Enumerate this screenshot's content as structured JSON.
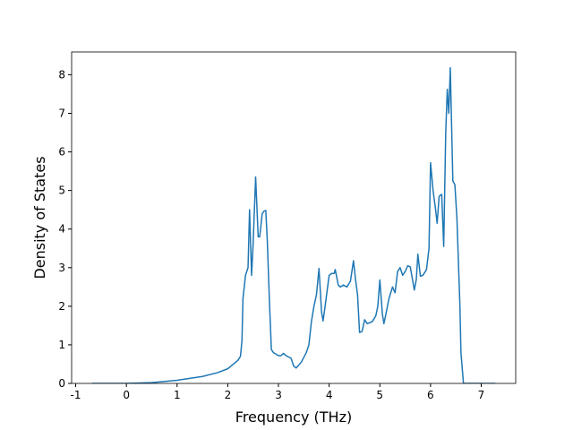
{
  "chart_data": {
    "type": "line",
    "x_label": "Frequency (THz)",
    "y_label": "Density of States",
    "series": [
      {
        "color": "#1f77b4",
        "x": [
          -0.68,
          0,
          0.5,
          1.0,
          1.5,
          1.8,
          2.0,
          2.2,
          2.25,
          2.28,
          2.3,
          2.35,
          2.4,
          2.43,
          2.47,
          2.5,
          2.55,
          2.6,
          2.63,
          2.68,
          2.72,
          2.75,
          2.78,
          2.82,
          2.86,
          2.9,
          3.0,
          3.05,
          3.1,
          3.15,
          3.25,
          3.3,
          3.35,
          3.45,
          3.55,
          3.6,
          3.65,
          3.7,
          3.75,
          3.8,
          3.85,
          3.88,
          3.92,
          4.0,
          4.05,
          4.1,
          4.12,
          4.18,
          4.22,
          4.28,
          4.35,
          4.42,
          4.48,
          4.52,
          4.56,
          4.6,
          4.65,
          4.7,
          4.75,
          4.85,
          4.92,
          4.96,
          5.0,
          5.05,
          5.08,
          5.12,
          5.18,
          5.25,
          5.3,
          5.35,
          5.4,
          5.45,
          5.5,
          5.55,
          5.6,
          5.65,
          5.68,
          5.72,
          5.75,
          5.8,
          5.85,
          5.92,
          5.97,
          6.0,
          6.05,
          6.1,
          6.13,
          6.17,
          6.22,
          6.26,
          6.3,
          6.33,
          6.36,
          6.39,
          6.44,
          6.48,
          6.52,
          6.58,
          6.6,
          6.65,
          7.0,
          7.28
        ],
        "values": [
          0,
          0,
          0.02,
          0.08,
          0.18,
          0.28,
          0.38,
          0.6,
          0.7,
          1.1,
          2.2,
          2.8,
          3.0,
          4.5,
          2.8,
          3.6,
          5.35,
          3.8,
          3.8,
          4.4,
          4.47,
          4.48,
          3.7,
          2.2,
          0.88,
          0.8,
          0.72,
          0.72,
          0.78,
          0.72,
          0.65,
          0.45,
          0.4,
          0.55,
          0.8,
          1.0,
          1.6,
          2.0,
          2.3,
          2.98,
          1.85,
          1.62,
          2.0,
          2.8,
          2.85,
          2.85,
          2.95,
          2.55,
          2.5,
          2.55,
          2.5,
          2.65,
          3.18,
          2.7,
          2.3,
          1.32,
          1.35,
          1.65,
          1.55,
          1.6,
          1.75,
          2.0,
          2.68,
          1.8,
          1.55,
          1.8,
          2.2,
          2.5,
          2.35,
          2.9,
          3.0,
          2.8,
          2.9,
          3.05,
          3.02,
          2.65,
          2.42,
          2.7,
          3.35,
          2.78,
          2.8,
          2.95,
          3.5,
          5.72,
          5.0,
          4.5,
          4.15,
          4.85,
          4.9,
          3.55,
          6.5,
          7.62,
          7.0,
          8.18,
          5.25,
          5.15,
          4.3,
          2.0,
          0.8,
          0,
          0,
          0
        ]
      }
    ],
    "xlim": [
      -1.08,
      7.68
    ],
    "xticks": [
      -1,
      0,
      1,
      2,
      3,
      4,
      5,
      6,
      7
    ],
    "ylim": [
      0,
      8.59
    ],
    "yticks": [
      0,
      1,
      2,
      3,
      4,
      5,
      6,
      7,
      8
    ]
  }
}
